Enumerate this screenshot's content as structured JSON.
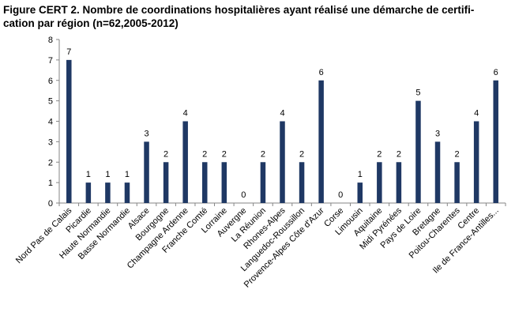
{
  "figure": {
    "title_line1": "Figure CERT 2. Nombre de coordinations hospitalières ayant réalisé une démarche de certifi-",
    "title_line2": "cation par région (n=62,2005-2012)"
  },
  "chart_data": {
    "type": "bar",
    "title": "Figure CERT 2. Nombre de coordinations hospitalières ayant réalisé une démarche de certification par région (n=62,2005-2012)",
    "xlabel": "",
    "ylabel": "",
    "ylim": [
      0,
      8
    ],
    "yticks": [
      0,
      1,
      2,
      3,
      4,
      5,
      6,
      7,
      8
    ],
    "grid": false,
    "bar_color": "#1f3864",
    "categories": [
      "Nord Pas de Calais",
      "Picardie",
      "Haute Normandie",
      "Basse Normandie",
      "Alsace",
      "Bourgogne",
      "Champagne Ardenne",
      "Franche Comté",
      "Lorraine",
      "Auvergne",
      "La Réunion",
      "Rhones-Alpes",
      "Languedoc-Roussillon",
      "Provence-Alpes Côte d'Azur",
      "Corse",
      "Limousin",
      "Aquitaine",
      "Midi Pyrénées",
      "Pays de Loire",
      "Bretagne",
      "Poitou-Charentes",
      "Centre",
      "Ile de France-Antilles..."
    ],
    "values": [
      7,
      1,
      1,
      1,
      3,
      2,
      4,
      2,
      2,
      0,
      2,
      4,
      2,
      6,
      0,
      1,
      2,
      2,
      5,
      3,
      2,
      4,
      6
    ]
  }
}
